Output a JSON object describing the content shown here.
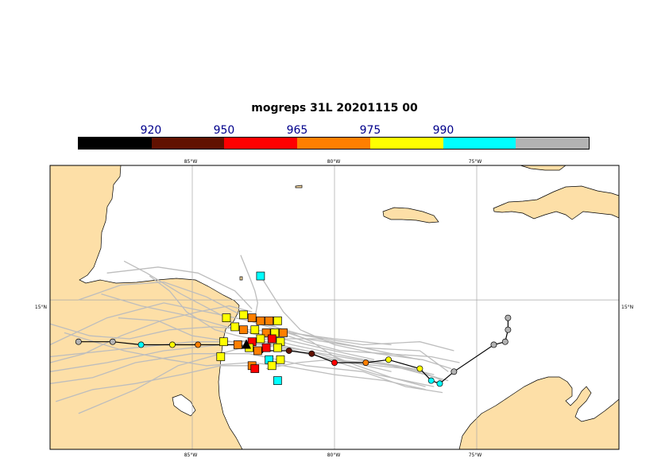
{
  "title": "mogreps 31L 20201115 00",
  "colors": {
    "ocean": "#ffffff",
    "land": "#fddfa7",
    "coast": "#000000",
    "grid": "#a8a8a8",
    "member_track": "#bdbdbd",
    "main_track": "#000000"
  },
  "colorbar": {
    "segments": [
      {
        "color": "#000000"
      },
      {
        "color": "#611100"
      },
      {
        "color": "#ff0000"
      },
      {
        "color": "#ff7f00"
      },
      {
        "color": "#ffff00"
      },
      {
        "color": "#00ffff"
      },
      {
        "color": "#b3b3b3"
      }
    ],
    "labels": [
      "920",
      "950",
      "965",
      "975",
      "990"
    ]
  },
  "map": {
    "lon_range": [
      -90,
      -70
    ],
    "lat_range": [
      10,
      19.5
    ],
    "lon_ticks": [
      "85°W",
      "80°W",
      "75°W"
    ],
    "lat_tick_left": "15°N",
    "lat_tick_right": "15°N"
  },
  "main_track": [
    {
      "lon": -89.0,
      "lat": 13.6,
      "color": "#b3b3b3"
    },
    {
      "lon": -87.8,
      "lat": 13.6,
      "color": "#b3b3b3"
    },
    {
      "lon": -86.8,
      "lat": 13.5,
      "color": "#00ffff"
    },
    {
      "lon": -85.7,
      "lat": 13.5,
      "color": "#ffff00"
    },
    {
      "lon": -84.8,
      "lat": 13.5,
      "color": "#ff7f00"
    },
    {
      "lon": -83.4,
      "lat": 13.5,
      "color": "#611100"
    },
    {
      "lon": -82.6,
      "lat": 13.3,
      "color": "#611100"
    },
    {
      "lon": -81.6,
      "lat": 13.3,
      "color": "#611100"
    },
    {
      "lon": -80.8,
      "lat": 13.2,
      "color": "#611100"
    },
    {
      "lon": -80.0,
      "lat": 12.9,
      "color": "#ff0000"
    },
    {
      "lon": -78.9,
      "lat": 12.9,
      "color": "#ff7f00"
    },
    {
      "lon": -78.1,
      "lat": 13.0,
      "color": "#ffff00"
    },
    {
      "lon": -77.0,
      "lat": 12.7,
      "color": "#ffff00"
    },
    {
      "lon": -76.6,
      "lat": 12.3,
      "color": "#00ffff"
    },
    {
      "lon": -76.3,
      "lat": 12.2,
      "color": "#00ffff"
    },
    {
      "lon": -75.8,
      "lat": 12.6,
      "color": "#b3b3b3"
    },
    {
      "lon": -74.4,
      "lat": 13.5,
      "color": "#b3b3b3"
    },
    {
      "lon": -74.0,
      "lat": 13.6,
      "color": "#b3b3b3"
    },
    {
      "lon": -73.9,
      "lat": 14.0,
      "color": "#b3b3b3"
    },
    {
      "lon": -73.9,
      "lat": 14.4,
      "color": "#b3b3b3"
    }
  ],
  "initial_position": {
    "lon": -83.1,
    "lat": 13.5
  },
  "ensemble_initial_positions": [
    {
      "lon": -82.6,
      "lat": 15.8,
      "color": "#00ffff"
    },
    {
      "lon": -83.8,
      "lat": 14.4,
      "color": "#ffff00"
    },
    {
      "lon": -83.2,
      "lat": 14.5,
      "color": "#ffff00"
    },
    {
      "lon": -82.9,
      "lat": 14.4,
      "color": "#ff7f00"
    },
    {
      "lon": -82.6,
      "lat": 14.3,
      "color": "#ff7f00"
    },
    {
      "lon": -82.3,
      "lat": 14.3,
      "color": "#ff7f00"
    },
    {
      "lon": -82.0,
      "lat": 14.3,
      "color": "#ffff00"
    },
    {
      "lon": -83.5,
      "lat": 14.1,
      "color": "#ffff00"
    },
    {
      "lon": -83.2,
      "lat": 14.0,
      "color": "#ff7f00"
    },
    {
      "lon": -82.8,
      "lat": 14.0,
      "color": "#ffff00"
    },
    {
      "lon": -82.4,
      "lat": 13.9,
      "color": "#ff7f00"
    },
    {
      "lon": -82.1,
      "lat": 13.9,
      "color": "#ffff00"
    },
    {
      "lon": -81.8,
      "lat": 13.9,
      "color": "#ff7f00"
    },
    {
      "lon": -83.9,
      "lat": 13.6,
      "color": "#ffff00"
    },
    {
      "lon": -83.4,
      "lat": 13.5,
      "color": "#ff7f00"
    },
    {
      "lon": -82.9,
      "lat": 13.6,
      "color": "#ff0000"
    },
    {
      "lon": -82.6,
      "lat": 13.7,
      "color": "#ffff00"
    },
    {
      "lon": -82.2,
      "lat": 13.7,
      "color": "#ff0000"
    },
    {
      "lon": -81.9,
      "lat": 13.6,
      "color": "#ffff00"
    },
    {
      "lon": -83.0,
      "lat": 13.4,
      "color": "#ffff00"
    },
    {
      "lon": -82.7,
      "lat": 13.3,
      "color": "#ff7f00"
    },
    {
      "lon": -82.4,
      "lat": 13.4,
      "color": "#ff0000"
    },
    {
      "lon": -82.0,
      "lat": 13.4,
      "color": "#ffff00"
    },
    {
      "lon": -84.0,
      "lat": 13.1,
      "color": "#ffff00"
    },
    {
      "lon": -82.3,
      "lat": 13.0,
      "color": "#00ffff"
    },
    {
      "lon": -81.9,
      "lat": 13.0,
      "color": "#ffff00"
    },
    {
      "lon": -82.9,
      "lat": 12.8,
      "color": "#ff7f00"
    },
    {
      "lon": -82.8,
      "lat": 12.7,
      "color": "#ff0000"
    },
    {
      "lon": -82.2,
      "lat": 12.8,
      "color": "#ffff00"
    },
    {
      "lon": -82.0,
      "lat": 12.3,
      "color": "#00ffff"
    }
  ],
  "member_tracks": [
    [
      [
        -90,
        13.1
      ],
      [
        -87,
        13.4
      ],
      [
        -85,
        13.6
      ],
      [
        -83,
        13.6
      ],
      [
        -81,
        13.3
      ],
      [
        -78,
        12.8
      ],
      [
        -76,
        12.3
      ]
    ],
    [
      [
        -90,
        13.5
      ],
      [
        -88,
        14.4
      ],
      [
        -86,
        14.9
      ],
      [
        -84.5,
        14.6
      ],
      [
        -83,
        14.3
      ],
      [
        -81,
        13.7
      ],
      [
        -79,
        13.4
      ],
      [
        -77,
        13.3
      ],
      [
        -76,
        12.6
      ]
    ],
    [
      [
        -90,
        12.6
      ],
      [
        -88,
        12.9
      ],
      [
        -86,
        13.3
      ],
      [
        -84,
        13.5
      ],
      [
        -82.5,
        13.5
      ],
      [
        -80.5,
        13.1
      ],
      [
        -78.5,
        12.5
      ],
      [
        -76.5,
        12.1
      ]
    ],
    [
      [
        -89,
        15.0
      ],
      [
        -87.5,
        15.5
      ],
      [
        -86,
        15.6
      ],
      [
        -84.5,
        15.1
      ],
      [
        -83.5,
        14.6
      ],
      [
        -82.5,
        14.2
      ],
      [
        -81,
        13.8
      ],
      [
        -79,
        13.5
      ],
      [
        -77,
        13.6
      ],
      [
        -75.8,
        13.3
      ]
    ],
    [
      [
        -90,
        12.2
      ],
      [
        -88.5,
        12.4
      ],
      [
        -87,
        12.9
      ],
      [
        -85,
        13.2
      ],
      [
        -83,
        13.2
      ],
      [
        -81,
        12.8
      ],
      [
        -79,
        12.6
      ],
      [
        -77.5,
        12.1
      ],
      [
        -76.2,
        11.9
      ]
    ],
    [
      [
        -89,
        11.2
      ],
      [
        -87,
        12.0
      ],
      [
        -85.5,
        12.8
      ],
      [
        -84,
        13.2
      ],
      [
        -82.5,
        13.6
      ],
      [
        -81,
        13.2
      ],
      [
        -79.5,
        12.9
      ],
      [
        -77.5,
        12.7
      ],
      [
        -76.4,
        12.4
      ]
    ],
    [
      [
        -87.4,
        16.3
      ],
      [
        -86.6,
        15.9
      ],
      [
        -85.4,
        15.2
      ],
      [
        -84,
        14.5
      ],
      [
        -83,
        13.9
      ],
      [
        -81.5,
        13.5
      ],
      [
        -79.5,
        13.1
      ],
      [
        -77.8,
        12.8
      ],
      [
        -76.5,
        12.5
      ]
    ],
    [
      [
        -87.6,
        14.4
      ],
      [
        -86.2,
        14.3
      ],
      [
        -85,
        13.8
      ],
      [
        -83.6,
        13.6
      ],
      [
        -82.2,
        13.7
      ],
      [
        -80.6,
        13.7
      ],
      [
        -79,
        13.4
      ],
      [
        -77,
        13.0
      ]
    ],
    [
      [
        -89.5,
        13.9
      ],
      [
        -87.4,
        13.3
      ],
      [
        -85.8,
        13.0
      ],
      [
        -84.5,
        12.8
      ],
      [
        -83,
        12.9
      ],
      [
        -81.8,
        12.8
      ],
      [
        -80,
        12.5
      ],
      [
        -78.2,
        12.3
      ],
      [
        -76.8,
        12.0
      ]
    ],
    [
      [
        -88.2,
        15.2
      ],
      [
        -86.8,
        14.8
      ],
      [
        -85.3,
        14.5
      ],
      [
        -83.8,
        14.1
      ],
      [
        -82.3,
        13.8
      ],
      [
        -80.5,
        13.4
      ],
      [
        -78.6,
        13.0
      ]
    ],
    [
      [
        -90,
        14.2
      ],
      [
        -88.6,
        13.8
      ],
      [
        -87.2,
        13.7
      ],
      [
        -85.8,
        14.0
      ],
      [
        -84.3,
        14.1
      ],
      [
        -83,
        14.0
      ],
      [
        -81.6,
        13.9
      ],
      [
        -80,
        13.7
      ],
      [
        -78,
        13.5
      ]
    ],
    [
      [
        -86.5,
        15.8
      ],
      [
        -85.8,
        15.3
      ],
      [
        -85.2,
        14.6
      ],
      [
        -84.2,
        14.0
      ],
      [
        -83.4,
        13.8
      ],
      [
        -82.4,
        13.6
      ],
      [
        -81,
        13.3
      ],
      [
        -79.8,
        13.0
      ],
      [
        -78,
        12.6
      ]
    ],
    [
      [
        -90,
        12.9
      ],
      [
        -88.8,
        13.2
      ],
      [
        -87.5,
        13.8
      ],
      [
        -86.1,
        14.3
      ],
      [
        -84.8,
        14.6
      ],
      [
        -83.7,
        14.8
      ],
      [
        -82.9,
        14.6
      ]
    ],
    [
      [
        -82.6,
        14.3
      ],
      [
        -81.8,
        14.0
      ],
      [
        -80.8,
        13.6
      ],
      [
        -80,
        13.1
      ],
      [
        -79.2,
        12.8
      ],
      [
        -78,
        12.4
      ],
      [
        -76.8,
        12.1
      ]
    ],
    [
      [
        -82.4,
        12.7
      ],
      [
        -81.3,
        12.9
      ],
      [
        -80.2,
        13.0
      ],
      [
        -78.8,
        12.9
      ],
      [
        -77.2,
        12.7
      ],
      [
        -76.2,
        12.3
      ]
    ],
    [
      [
        -82.6,
        15.8
      ],
      [
        -82.2,
        15.2
      ],
      [
        -81.8,
        14.6
      ],
      [
        -81.2,
        14.0
      ],
      [
        -80,
        13.5
      ],
      [
        -78.5,
        13.2
      ],
      [
        -76.9,
        13.0
      ],
      [
        -75.9,
        12.7
      ]
    ],
    [
      [
        -89.8,
        11.6
      ],
      [
        -88.5,
        12.0
      ],
      [
        -87,
        12.2
      ],
      [
        -85.4,
        12.5
      ],
      [
        -84,
        12.8
      ],
      [
        -82.9,
        12.8
      ]
    ],
    [
      [
        -83.3,
        16.5
      ],
      [
        -83,
        15.8
      ],
      [
        -82.8,
        15.3
      ],
      [
        -82.7,
        14.9
      ],
      [
        -82.8,
        14.4
      ]
    ],
    [
      [
        -88,
        15.9
      ],
      [
        -86.2,
        16.1
      ],
      [
        -84.8,
        15.9
      ],
      [
        -83.5,
        15.3
      ],
      [
        -82.9,
        14.7
      ]
    ],
    [
      [
        -82,
        13.9
      ],
      [
        -81,
        13.6
      ],
      [
        -79.8,
        13.3
      ],
      [
        -78.2,
        13.2
      ],
      [
        -76.6,
        13.1
      ],
      [
        -75.6,
        12.9
      ]
    ]
  ]
}
